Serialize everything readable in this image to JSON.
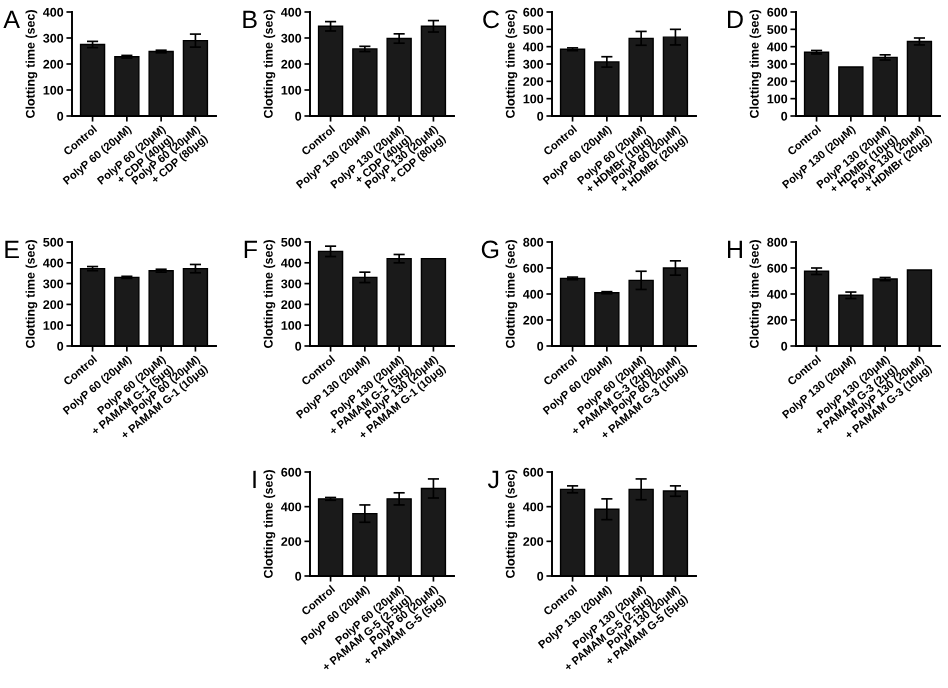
{
  "chart_data": [
    {
      "type": "bar",
      "title": "A",
      "ylabel": "Clotting time (sec)",
      "categories": [
        "Control",
        "PolyP 60 (20μM)",
        "PolyP 60 (20μM)\n+ CDP (40μg)",
        "PolyP 60 (20μM)\n+ CDP (80μg)"
      ],
      "values": [
        275,
        228,
        248,
        290
      ],
      "errors": [
        12,
        5,
        5,
        25
      ],
      "color": "#1a1a1a",
      "ylim": [
        0,
        400
      ],
      "yticks": [
        0,
        100,
        200,
        300,
        400
      ]
    },
    {
      "type": "bar",
      "title": "B",
      "ylabel": "Clotting time (sec)",
      "categories": [
        "Control",
        "PolyP 130 (20μM)",
        "PolyP 130 (20μM)\n+ CDP (40μg)",
        "PolyP 130 (20μM)\n+ CDP (80μg)"
      ],
      "values": [
        345,
        258,
        298,
        345
      ],
      "errors": [
        18,
        10,
        18,
        22
      ],
      "color": "#1a1a1a",
      "ylim": [
        0,
        400
      ],
      "yticks": [
        0,
        100,
        200,
        300,
        400
      ]
    },
    {
      "type": "bar",
      "title": "C",
      "ylabel": "Clotting time (sec)",
      "categories": [
        "Control",
        "PolyP 60 (20μM)",
        "PolyP 60 (20μM)\n+ HDMBr (10μg)",
        "PolyP 60 (20μM)\n+ HDMBr (20μg)"
      ],
      "values": [
        385,
        312,
        448,
        455
      ],
      "errors": [
        8,
        30,
        40,
        45
      ],
      "color": "#1a1a1a",
      "ylim": [
        0,
        600
      ],
      "yticks": [
        0,
        100,
        200,
        300,
        400,
        500,
        600
      ]
    },
    {
      "type": "bar",
      "title": "D",
      "ylabel": "Clotting time (sec)",
      "categories": [
        "Control",
        "PolyP 130 (20μM)",
        "PolyP 130 (20μM)\n+ HDMBr (10μg)",
        "PolyP 130 (20μM)\n+ HDMBr (20μg)"
      ],
      "values": [
        368,
        283,
        338,
        430
      ],
      "errors": [
        10,
        null,
        15,
        20
      ],
      "color": "#1a1a1a",
      "ylim": [
        0,
        600
      ],
      "yticks": [
        0,
        100,
        200,
        300,
        400,
        500,
        600
      ]
    },
    {
      "type": "bar",
      "title": "E",
      "ylabel": "Clotting time (sec)",
      "categories": [
        "Control",
        "PolyP 60 (20μM)",
        "PolyP 60 (20μM)\n+ PAMAM G-1 (5μg)",
        "PolyP 60 (20μM)\n+ PAMAM G-1 (10μg)"
      ],
      "values": [
        372,
        330,
        362,
        372
      ],
      "errors": [
        10,
        5,
        7,
        20
      ],
      "color": "#1a1a1a",
      "ylim": [
        0,
        500
      ],
      "yticks": [
        0,
        100,
        200,
        300,
        400,
        500
      ]
    },
    {
      "type": "bar",
      "title": "F",
      "ylabel": "Clotting time (sec)",
      "categories": [
        "Control",
        "PolyP 130 (20μM)",
        "PolyP 130 (20μM)\n+ PAMAM G-1 (5μg)",
        "PolyP 130 (20μM)\n+ PAMAM G-1 (10μg)"
      ],
      "values": [
        455,
        330,
        420,
        420
      ],
      "errors": [
        25,
        25,
        20,
        null
      ],
      "color": "#1a1a1a",
      "ylim": [
        0,
        500
      ],
      "yticks": [
        0,
        100,
        200,
        300,
        400,
        500
      ]
    },
    {
      "type": "bar",
      "title": "G",
      "ylabel": "Clotting time (sec)",
      "categories": [
        "Control",
        "PolyP 60 (20μM)",
        "PolyP 60 (20μM)\n+ PAMAM G-3 (2μg)",
        "PolyP 60 (20μM)\n+ PAMAM G-3 (10μg)"
      ],
      "values": [
        520,
        410,
        505,
        600
      ],
      "errors": [
        10,
        8,
        70,
        55
      ],
      "color": "#1a1a1a",
      "ylim": [
        0,
        800
      ],
      "yticks": [
        0,
        200,
        400,
        600,
        800
      ]
    },
    {
      "type": "bar",
      "title": "H",
      "ylabel": "Clotting time (sec)",
      "categories": [
        "Control",
        "PolyP 130 (20μM)",
        "PolyP 130 (20μM)\n+ PAMAM G-3 (2μg)",
        "PolyP 130 (20μM)\n+ PAMAM G-3 (10μg)"
      ],
      "values": [
        575,
        390,
        515,
        585
      ],
      "errors": [
        25,
        25,
        12,
        null
      ],
      "color": "#1a1a1a",
      "ylim": [
        0,
        800
      ],
      "yticks": [
        0,
        200,
        400,
        600,
        800
      ]
    },
    {
      "type": "bar",
      "title": "I",
      "ylabel": "Clotting time (sec)",
      "categories": [
        "Control",
        "PolyP 60 (20μM)",
        "PolyP 60 (20μM)\n+ PAMAM G-5 (2.5μg)",
        "PolyP 60 (20μM)\n+ PAMAM G-5 (5μg)"
      ],
      "values": [
        445,
        360,
        445,
        505
      ],
      "errors": [
        8,
        50,
        35,
        55
      ],
      "color": "#1a1a1a",
      "ylim": [
        0,
        600
      ],
      "yticks": [
        0,
        200,
        400,
        600
      ]
    },
    {
      "type": "bar",
      "title": "J",
      "ylabel": "Clotting time (sec)",
      "categories": [
        "Control",
        "PolyP 130 (20μM)",
        "PolyP 130 (20μM)\n+ PAMAM G-5 (2.5μg)",
        "PolyP 130 (20μM)\n+ PAMAM G-5 (5μg)"
      ],
      "values": [
        500,
        385,
        500,
        490
      ],
      "errors": [
        20,
        60,
        60,
        30
      ],
      "color": "#1a1a1a",
      "ylim": [
        0,
        600
      ],
      "yticks": [
        0,
        200,
        400,
        600
      ]
    }
  ]
}
